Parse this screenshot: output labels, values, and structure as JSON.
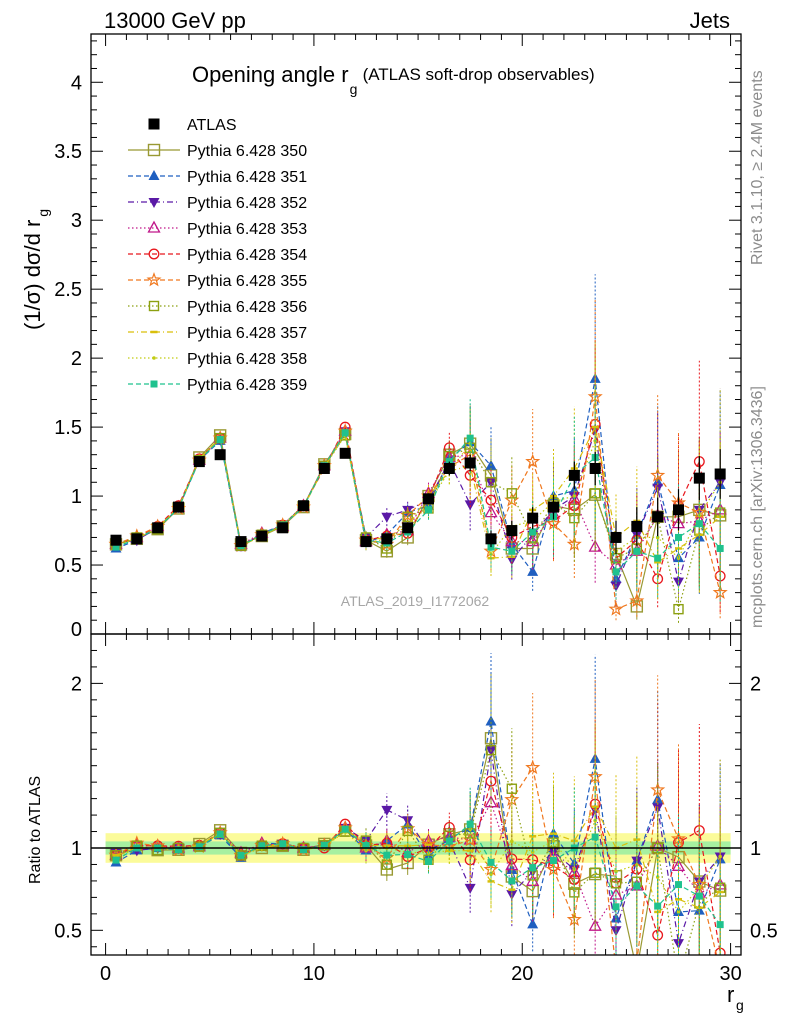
{
  "header": {
    "left": "13000 GeV pp",
    "right": "Jets"
  },
  "side_labels": {
    "rivet": "Rivet 3.1.10, ≥ 2.4M events",
    "mcplots": "mcplots.cern.ch [arXiv:1306.3436]"
  },
  "chart_data": {
    "type": "scatter",
    "title_main": "Opening angle r",
    "title_sub": "g",
    "title_paren": "(ATLAS soft-drop observables)",
    "watermark": "ATLAS_2019_I1772062",
    "ylabel_main": "(1/σ) dσ/d r",
    "ylabel_sub": "g",
    "xlabel_main": "r",
    "xlabel_sub": "g",
    "ratio_ylabel": "Ratio to ATLAS",
    "xlim": [
      -0.7,
      30.5
    ],
    "ylim": [
      0,
      4.35
    ],
    "ratio_ylim": [
      0.35,
      2.3
    ],
    "xticks": [
      0,
      10,
      20,
      30
    ],
    "yticks": [
      0,
      0.5,
      1,
      1.5,
      2,
      2.5,
      3,
      3.5,
      4
    ],
    "ratio_yticks": [
      0.5,
      1,
      2
    ],
    "ratio_band": {
      "inner": 0.04,
      "outer": 0.09
    },
    "x": [
      0.5,
      1.5,
      2.5,
      3.5,
      4.5,
      5.5,
      6.5,
      7.5,
      8.5,
      9.5,
      10.5,
      11.5,
      12.5,
      13.5,
      14.5,
      15.5,
      16.5,
      17.5,
      18.5,
      19.5,
      20.5,
      21.5,
      22.5,
      23.5,
      24.5,
      25.5,
      26.5,
      27.5,
      28.5,
      29.5
    ],
    "data": {
      "name": "ATLAS",
      "values": [
        0.68,
        0.69,
        0.77,
        0.92,
        1.25,
        1.3,
        0.67,
        0.71,
        0.77,
        0.93,
        1.2,
        1.31,
        0.67,
        0.69,
        0.77,
        0.98,
        1.2,
        1.24,
        0.69,
        0.75,
        0.84,
        0.92,
        1.15,
        1.2,
        0.7,
        0.78,
        0.85,
        0.9,
        1.13,
        1.16
      ],
      "errors": [
        0.02,
        0.02,
        0.02,
        0.02,
        0.03,
        0.03,
        0.02,
        0.02,
        0.02,
        0.02,
        0.03,
        0.03,
        0.03,
        0.03,
        0.03,
        0.04,
        0.05,
        0.06,
        0.06,
        0.07,
        0.08,
        0.09,
        0.1,
        0.12,
        0.12,
        0.14,
        0.14,
        0.15,
        0.16,
        0.18
      ]
    },
    "series": [
      {
        "name": "Pythia 6.428 350",
        "color": "#999933",
        "marker": "square-open",
        "dash": "solid",
        "values": [
          0.65,
          0.69,
          0.76,
          0.91,
          1.28,
          1.44,
          0.65,
          0.71,
          0.78,
          0.92,
          1.23,
          1.45,
          0.68,
          0.6,
          0.7,
          1.0,
          1.3,
          1.38,
          1.15,
          0.62,
          0.62,
          0.93,
          0.9,
          1.01,
          0.58,
          0.2,
          0.85,
          0.85,
          0.9,
          0.86
        ]
      },
      {
        "name": "Pythia 6.428 351",
        "color": "#1f5fc0",
        "marker": "triangle-up",
        "dash": "dash",
        "values": [
          0.62,
          0.68,
          0.77,
          0.91,
          1.26,
          1.4,
          0.63,
          0.73,
          0.79,
          0.93,
          1.21,
          1.46,
          0.66,
          0.72,
          0.88,
          0.93,
          1.27,
          1.39,
          1.22,
          0.65,
          0.45,
          1.0,
          1.04,
          1.85,
          0.4,
          0.72,
          1.1,
          0.55,
          0.7,
          1.08
        ]
      },
      {
        "name": "Pythia 6.428 352",
        "color": "#5a19a6",
        "marker": "triangle-down",
        "dash": "dashdot",
        "values": [
          0.66,
          0.68,
          0.77,
          0.92,
          1.27,
          1.41,
          0.64,
          0.72,
          0.79,
          0.93,
          1.22,
          1.47,
          0.7,
          0.85,
          0.9,
          0.97,
          1.25,
          0.94,
          1.1,
          0.54,
          0.72,
          0.9,
          1.0,
          1.48,
          0.35,
          0.72,
          1.06,
          0.38,
          0.9,
          1.1
        ]
      },
      {
        "name": "Pythia 6.428 353",
        "color": "#c0178a",
        "marker": "triangle-up-open",
        "dash": "dot",
        "values": [
          0.65,
          0.7,
          0.78,
          0.92,
          1.26,
          1.42,
          0.65,
          0.73,
          0.78,
          0.93,
          1.22,
          1.47,
          0.67,
          0.72,
          0.75,
          1.02,
          1.28,
          1.3,
          0.88,
          0.67,
          0.67,
          0.87,
          0.98,
          0.63,
          0.5,
          0.6,
          0.86,
          0.8,
          0.82,
          0.9
        ]
      },
      {
        "name": "Pythia 6.428 354",
        "color": "#e8171d",
        "marker": "circle-open",
        "dash": "dash",
        "values": [
          0.65,
          0.7,
          0.78,
          0.93,
          1.27,
          1.42,
          0.64,
          0.72,
          0.79,
          0.93,
          1.2,
          1.5,
          0.68,
          0.71,
          0.73,
          0.98,
          1.35,
          1.15,
          0.97,
          0.7,
          0.78,
          0.82,
          0.93,
          1.52,
          0.55,
          0.68,
          0.4,
          0.93,
          1.25,
          0.42
        ]
      },
      {
        "name": "Pythia 6.428 355",
        "color": "#f0781e",
        "marker": "star-open",
        "dash": "dash",
        "values": [
          0.65,
          0.71,
          0.78,
          0.91,
          1.26,
          1.42,
          0.64,
          0.72,
          0.79,
          0.92,
          1.22,
          1.47,
          0.68,
          0.65,
          0.86,
          1.0,
          1.21,
          1.3,
          0.6,
          0.97,
          1.25,
          0.8,
          0.65,
          1.72,
          0.18,
          0.24,
          1.15,
          0.95,
          0.88,
          0.3
        ]
      },
      {
        "name": "Pythia 6.428 356",
        "color": "#8ca011",
        "marker": "square-open-small",
        "dash": "dot",
        "values": [
          0.65,
          0.7,
          0.76,
          0.92,
          1.26,
          1.42,
          0.64,
          0.72,
          0.78,
          0.93,
          1.22,
          1.44,
          0.7,
          0.62,
          0.85,
          0.91,
          1.29,
          1.35,
          1.1,
          1.02,
          0.7,
          0.95,
          0.84,
          1.02,
          0.55,
          0.62,
          0.85,
          0.18,
          0.75,
          0.88
        ]
      },
      {
        "name": "Pythia 6.428 357",
        "color": "#d9bf0b",
        "marker": "dash-small",
        "dash": "dashdot",
        "values": [
          0.65,
          0.69,
          0.77,
          0.92,
          1.27,
          1.42,
          0.64,
          0.71,
          0.79,
          0.92,
          1.21,
          1.46,
          0.68,
          0.7,
          0.78,
          1.0,
          1.18,
          1.22,
          0.55,
          0.56,
          0.9,
          1.0,
          1.2,
          1.5,
          0.7,
          0.82,
          0.52,
          0.62,
          0.72,
          0.85
        ]
      },
      {
        "name": "Pythia 6.428 358",
        "color": "#c2cc12",
        "marker": "dot-small",
        "dash": "dot",
        "values": [
          0.64,
          0.69,
          0.77,
          0.91,
          1.27,
          1.41,
          0.64,
          0.71,
          0.79,
          0.93,
          1.21,
          1.44,
          0.66,
          0.69,
          0.75,
          0.95,
          1.18,
          1.38,
          0.58,
          0.78,
          0.82,
          0.96,
          1.0,
          1.4,
          0.6,
          0.7,
          0.7,
          0.55,
          0.86,
          1.1
        ]
      },
      {
        "name": "Pythia 6.428 359",
        "color": "#1fc28e",
        "marker": "square-small",
        "dash": "dash",
        "values": [
          0.63,
          0.69,
          0.77,
          0.91,
          1.26,
          1.41,
          0.64,
          0.72,
          0.79,
          0.92,
          1.22,
          1.46,
          0.68,
          0.66,
          0.74,
          0.9,
          1.25,
          1.42,
          0.63,
          0.6,
          0.74,
          0.85,
          1.15,
          1.28,
          0.45,
          0.6,
          0.55,
          0.7,
          0.8,
          0.62
        ]
      }
    ]
  }
}
